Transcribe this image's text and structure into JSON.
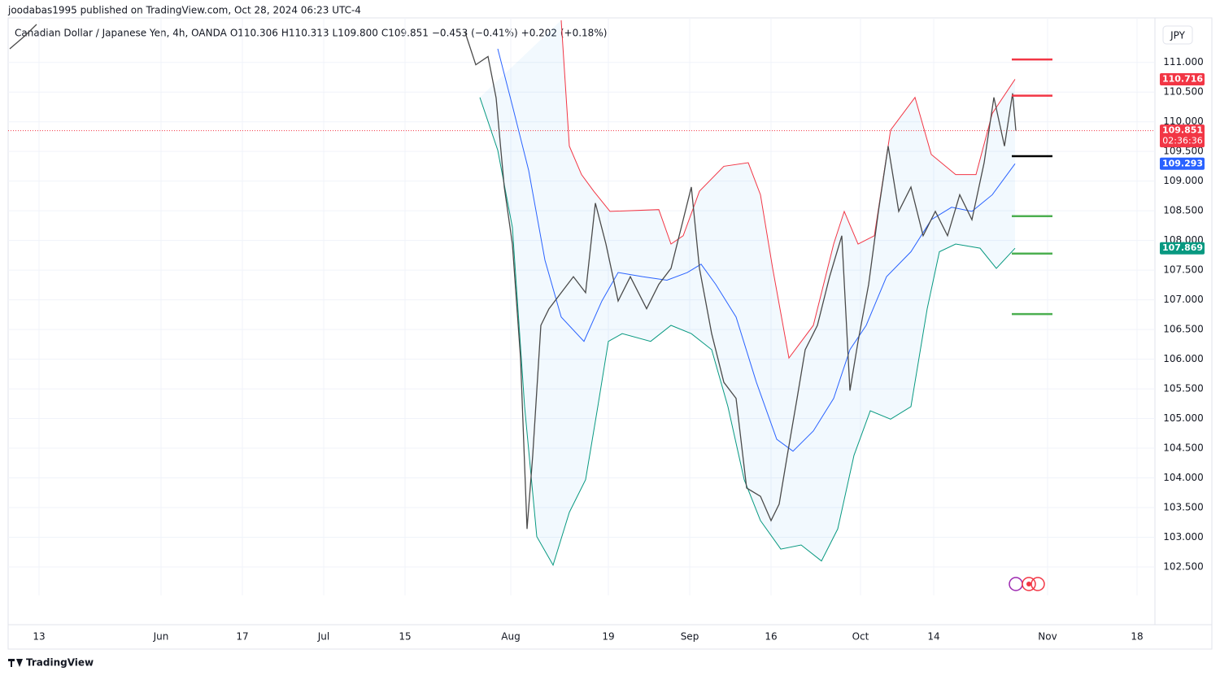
{
  "header": {
    "published": "joodabas1995 published on TradingView.com, Oct 28, 2024 06:23 UTC-4"
  },
  "legend": {
    "symbol": "Canadian Dollar / Japanese Yen, 4h, OANDA",
    "items": [
      {
        "key": "O",
        "value": 110.306
      },
      {
        "key": "H",
        "value": 110.313
      },
      {
        "key": "L",
        "value": 109.8,
        "label": "109.800"
      },
      {
        "key": "C",
        "value": 109.851
      }
    ],
    "change": "−0.453 (−0.41%)",
    "extra": "+0.202 (+0.18%)"
  },
  "currency": "JPY",
  "footer": "TradingView",
  "chart_data": {
    "type": "line",
    "xlim": [
      -3.8,
      137.2
    ],
    "ylim": [
      102.02,
      111.75
    ],
    "xticks": [
      {
        "value": 0,
        "label": "13"
      },
      {
        "value": 15,
        "label": "Jun"
      },
      {
        "value": 25,
        "label": "17"
      },
      {
        "value": 35,
        "label": "Jul"
      },
      {
        "value": 45,
        "label": "15"
      },
      {
        "value": 58,
        "label": "Aug"
      },
      {
        "value": 70,
        "label": "19"
      },
      {
        "value": 80,
        "label": "Sep"
      },
      {
        "value": 90,
        "label": "16"
      },
      {
        "value": 101,
        "label": "Oct"
      },
      {
        "value": 110,
        "label": "14"
      },
      {
        "value": 124,
        "label": "Nov"
      },
      {
        "value": 135,
        "label": "18"
      }
    ],
    "yticks": [
      {
        "value": 102.5,
        "label": "102.500"
      },
      {
        "value": 103,
        "label": "103.000"
      },
      {
        "value": 103.5,
        "label": "103.500"
      },
      {
        "value": 104,
        "label": "104.000"
      },
      {
        "value": 104.5,
        "label": "104.500"
      },
      {
        "value": 105,
        "label": "105.000"
      },
      {
        "value": 105.5,
        "label": "105.500"
      },
      {
        "value": 106,
        "label": "106.000"
      },
      {
        "value": 106.5,
        "label": "106.500"
      },
      {
        "value": 107,
        "label": "107.000"
      },
      {
        "value": 107.5,
        "label": "107.500"
      },
      {
        "value": 108,
        "label": "108.000"
      },
      {
        "value": 108.5,
        "label": "108.500"
      },
      {
        "value": 109,
        "label": "109.000"
      },
      {
        "value": 109.5,
        "label": "109.500"
      },
      {
        "value": 110,
        "label": "110.000"
      },
      {
        "value": 110.5,
        "label": "110.500"
      },
      {
        "value": 111,
        "label": "111.000"
      }
    ],
    "grid": true,
    "series": [
      {
        "color": "#f23645",
        "x": [
          64.2,
          65.2,
          66.7,
          68.2,
          70.2,
          76.2,
          77.7,
          79.2,
          81.2,
          84.2,
          87.2,
          88.7,
          90.2,
          92.2,
          95.2,
          97.7,
          99,
          100.7,
          102.7,
          104.7,
          107.7,
          109.7,
          112.7,
          115.2,
          117.2,
          120
        ],
        "values": [
          111.71,
          109.59,
          109.11,
          108.83,
          108.49,
          108.52,
          107.94,
          108.08,
          108.83,
          109.25,
          109.31,
          108.77,
          107.53,
          106.02,
          106.57,
          107.94,
          108.49,
          107.94,
          108.08,
          109.86,
          110.41,
          109.45,
          109.11,
          109.11,
          110.14,
          110.716
        ]
      },
      {
        "color": "#2962ff",
        "x": [
          56.4,
          58.2,
          60.2,
          62.2,
          64.2,
          67,
          69.2,
          71.2,
          74.2,
          77.2,
          79.7,
          81.4,
          83.2,
          85.7,
          88.2,
          90.7,
          92.7,
          95.2,
          97.7,
          99.7,
          101.7,
          104.2,
          107.2,
          109.7,
          112.2,
          114.7,
          117.2,
          120
        ],
        "values": [
          111.23,
          110.27,
          109.18,
          107.67,
          106.71,
          106.3,
          106.98,
          107.46,
          107.39,
          107.33,
          107.46,
          107.6,
          107.26,
          106.71,
          105.61,
          104.65,
          104.45,
          104.79,
          105.34,
          106.16,
          106.57,
          107.39,
          107.81,
          108.35,
          108.56,
          108.49,
          108.77,
          109.293
        ]
      },
      {
        "color": "#089981",
        "x": [
          54.2,
          56.4,
          58.2,
          59.7,
          61.2,
          63.2,
          65.2,
          67.2,
          68.7,
          70,
          71.7,
          75.2,
          77.7,
          80.2,
          82.7,
          84.7,
          86.7,
          88.7,
          91.2,
          93.7,
          96.2,
          98.2,
          100.2,
          102.2,
          104.7,
          107.2,
          109.2,
          110.7,
          112.7,
          115.7,
          117.7,
          120
        ],
        "values": [
          110.41,
          109.52,
          108.22,
          105.2,
          103.01,
          102.53,
          103.42,
          103.97,
          105.2,
          106.3,
          106.43,
          106.3,
          106.57,
          106.43,
          106.16,
          105.2,
          103.97,
          103.28,
          102.8,
          102.87,
          102.6,
          103.14,
          104.38,
          105.13,
          104.99,
          105.2,
          106.85,
          107.81,
          107.94,
          107.87,
          107.53,
          107.869
        ]
      },
      {
        "color": "#4a4a4a",
        "x": [
          -3.6,
          -1.8,
          -0.3,
          null,
          52.4,
          53.7,
          55.2,
          56.2,
          57.2,
          58.2,
          59.2,
          60,
          60.7,
          61.7,
          62.7,
          64.2,
          65.7,
          67.2,
          68.4,
          69.7,
          71.2,
          72.7,
          74.7,
          76.2,
          77.7,
          79.2,
          80.2,
          81.2,
          82.7,
          84.2,
          85.7,
          87,
          88.7,
          90,
          91,
          92,
          93.2,
          94.2,
          95.7,
          97.2,
          98.7,
          99.7,
          100.7,
          102,
          103.2,
          104.4,
          105.7,
          107.2,
          108.7,
          110.2,
          111.7,
          113.2,
          114.7,
          116.2,
          117.4,
          118.7,
          119.7,
          120.1
        ],
        "values": [
          111.23,
          111.44,
          111.64,
          null,
          111.5,
          110.96,
          111.1,
          110.4,
          108.9,
          107.94,
          106.02,
          103.14,
          104.38,
          106.57,
          106.85,
          107.12,
          107.39,
          107.12,
          108.63,
          107.94,
          106.98,
          107.39,
          106.85,
          107.26,
          107.53,
          108.35,
          108.9,
          107.53,
          106.43,
          105.61,
          105.34,
          103.83,
          103.69,
          103.28,
          103.56,
          104.38,
          105.34,
          106.16,
          106.57,
          107.39,
          108.08,
          105.47,
          106.3,
          107.26,
          108.49,
          109.59,
          108.49,
          108.9,
          108.08,
          108.49,
          108.08,
          108.77,
          108.35,
          109.31,
          110.41,
          109.59,
          110.48,
          109.851
        ]
      }
    ],
    "levels": [
      {
        "value": 111.05,
        "color": "#f23645"
      },
      {
        "value": 110.44,
        "color": "#f23645"
      },
      {
        "value": 109.42,
        "color": "#000000"
      },
      {
        "value": 108.41,
        "color": "#4caf50"
      },
      {
        "value": 107.78,
        "color": "#4caf50"
      },
      {
        "value": 106.76,
        "color": "#4caf50"
      }
    ],
    "level_x": [
      119.6,
      124.6
    ],
    "current_price": 109.851,
    "price_labels": [
      {
        "value": 110.716,
        "color": "#f23645"
      },
      {
        "value": 109.851,
        "color": "#f23645",
        "countdown": "02:36:36"
      },
      {
        "value": 109.293,
        "color": "#2962ff"
      },
      {
        "value": 107.869,
        "color": "#089981"
      }
    ]
  }
}
